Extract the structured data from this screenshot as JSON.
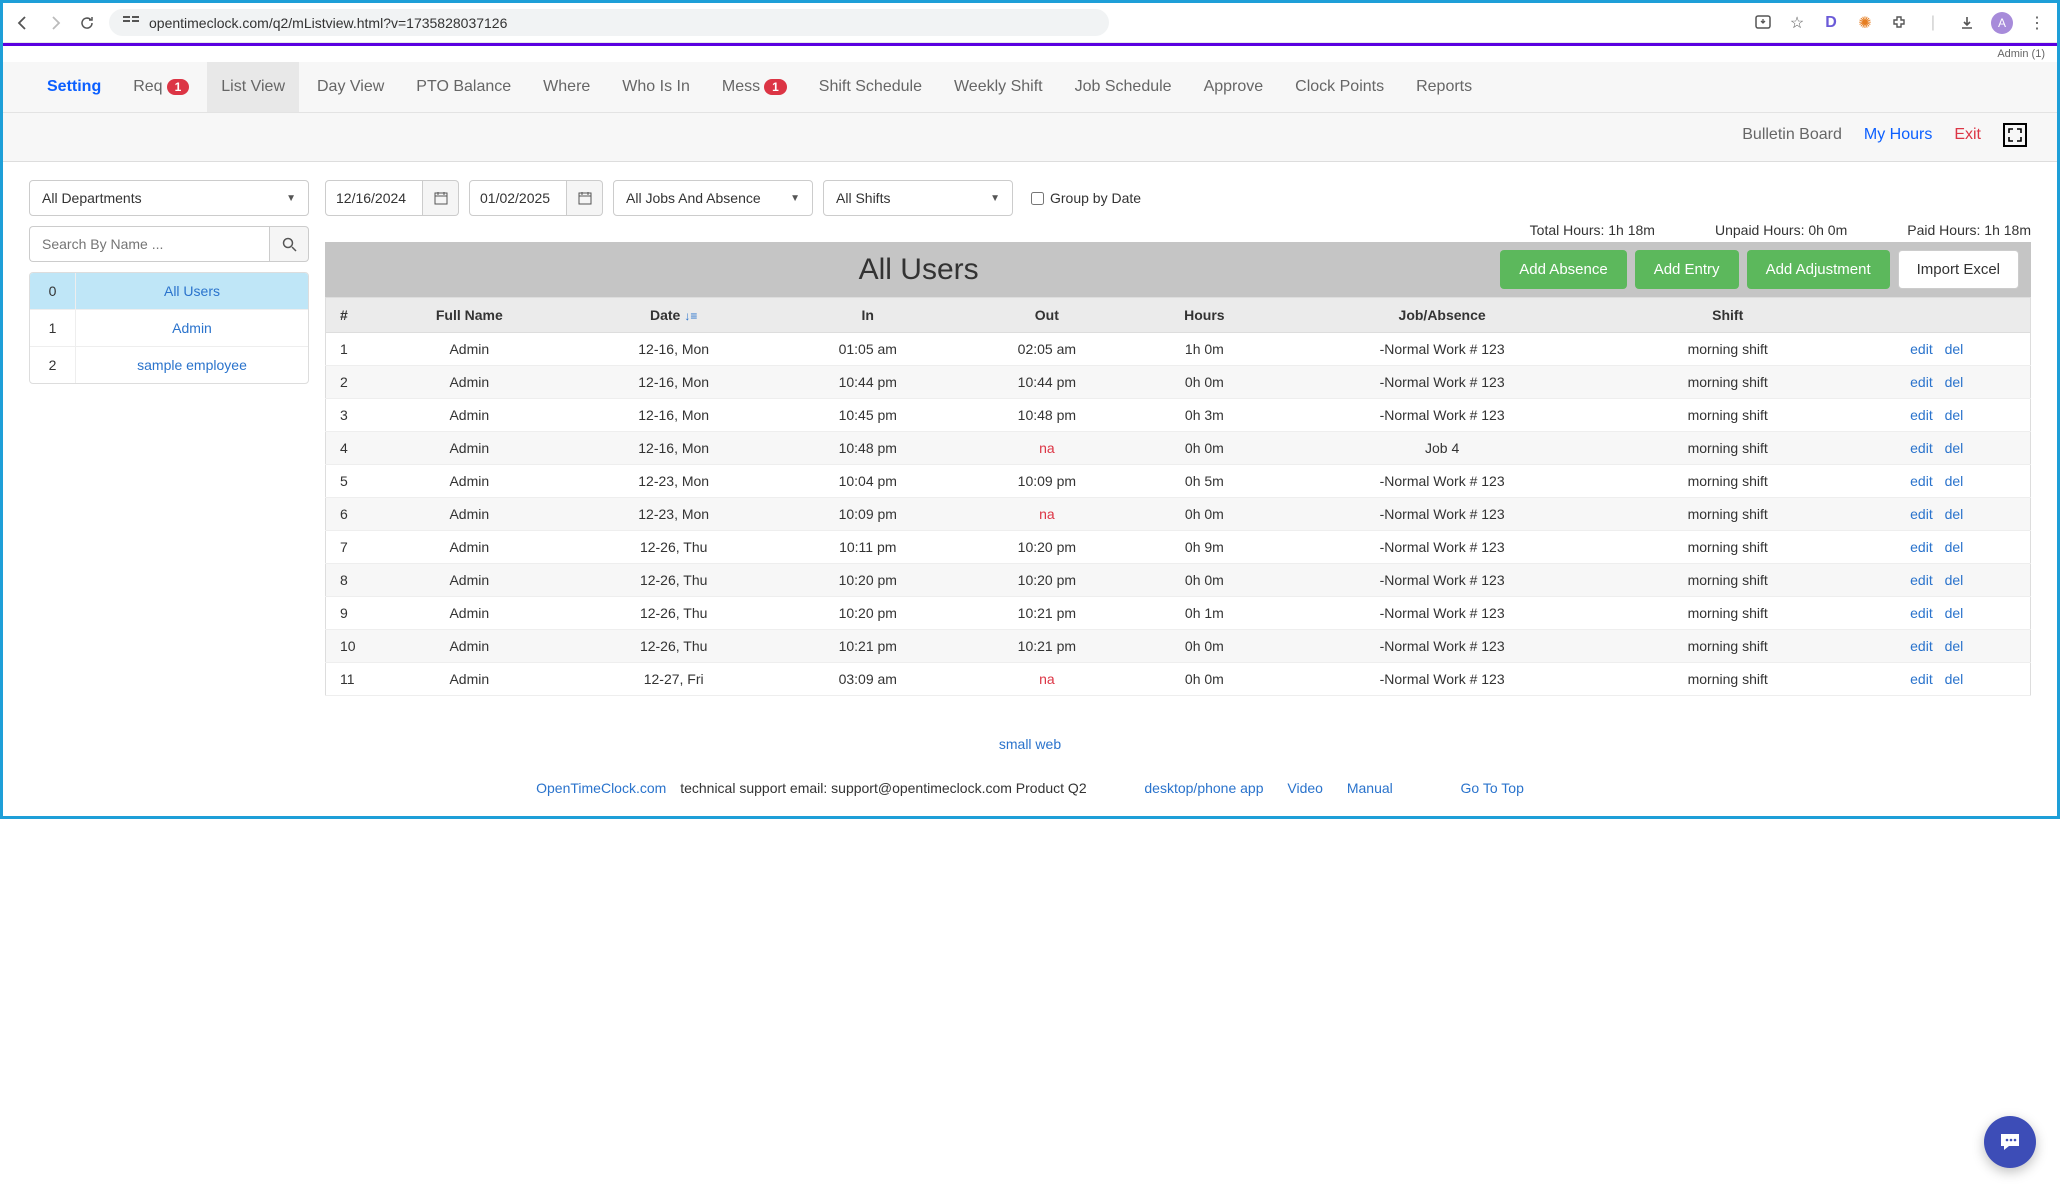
{
  "browser": {
    "url": "opentimeclock.com/q2/mListview.html?v=1735828037126",
    "profile_initial": "A"
  },
  "admin_label": "Admin (1)",
  "nav": {
    "items": [
      {
        "label": "Setting",
        "style": "primary"
      },
      {
        "label": "Req",
        "badge": "1"
      },
      {
        "label": "List View",
        "style": "active"
      },
      {
        "label": "Day View"
      },
      {
        "label": "PTO Balance"
      },
      {
        "label": "Where"
      },
      {
        "label": "Who Is In"
      },
      {
        "label": "Mess",
        "badge": "1"
      },
      {
        "label": "Shift Schedule"
      },
      {
        "label": "Weekly Shift"
      },
      {
        "label": "Job Schedule"
      },
      {
        "label": "Approve"
      },
      {
        "label": "Clock Points"
      },
      {
        "label": "Reports"
      }
    ],
    "sub": {
      "bulletin": "Bulletin Board",
      "myhours": "My Hours",
      "exit": "Exit"
    }
  },
  "sidebar": {
    "dept_select": "All Departments",
    "search_placeholder": "Search By Name ...",
    "users": [
      {
        "idx": "0",
        "name": "All Users",
        "selected": true
      },
      {
        "idx": "1",
        "name": "Admin"
      },
      {
        "idx": "2",
        "name": "sample employee"
      }
    ]
  },
  "filters": {
    "date_from": "12/16/2024",
    "date_to": "01/02/2025",
    "jobs_select": "All Jobs And Absence",
    "shifts_select": "All Shifts",
    "group_by_label": "Group by Date"
  },
  "summary": {
    "total": "Total Hours: 1h 18m",
    "unpaid": "Unpaid Hours: 0h 0m",
    "paid": "Paid Hours: 1h 18m"
  },
  "table": {
    "title": "All Users",
    "buttons": {
      "add_absence": "Add Absence",
      "add_entry": "Add Entry",
      "add_adjustment": "Add Adjustment",
      "import_excel": "Import Excel"
    },
    "columns": [
      "#",
      "Full Name",
      "Date",
      "In",
      "Out",
      "Hours",
      "Job/Absence",
      "Shift",
      ""
    ],
    "edit_label": "edit",
    "del_label": "del",
    "rows": [
      {
        "n": "1",
        "name": "Admin",
        "date": "12-16, Mon",
        "in": "01:05 am",
        "out": "02:05 am",
        "hours": "1h 0m",
        "job": "-Normal Work # 123",
        "shift": "morning shift"
      },
      {
        "n": "2",
        "name": "Admin",
        "date": "12-16, Mon",
        "in": "10:44 pm",
        "out": "10:44 pm",
        "hours": "0h 0m",
        "job": "-Normal Work # 123",
        "shift": "morning shift"
      },
      {
        "n": "3",
        "name": "Admin",
        "date": "12-16, Mon",
        "in": "10:45 pm",
        "out": "10:48 pm",
        "hours": "0h 3m",
        "job": "-Normal Work # 123",
        "shift": "morning shift"
      },
      {
        "n": "4",
        "name": "Admin",
        "date": "12-16, Mon",
        "in": "10:48 pm",
        "out": "na",
        "hours": "0h 0m",
        "job": "Job 4",
        "shift": "morning shift"
      },
      {
        "n": "5",
        "name": "Admin",
        "date": "12-23, Mon",
        "in": "10:04 pm",
        "out": "10:09 pm",
        "hours": "0h 5m",
        "job": "-Normal Work # 123",
        "shift": "morning shift"
      },
      {
        "n": "6",
        "name": "Admin",
        "date": "12-23, Mon",
        "in": "10:09 pm",
        "out": "na",
        "hours": "0h 0m",
        "job": "-Normal Work # 123",
        "shift": "morning shift"
      },
      {
        "n": "7",
        "name": "Admin",
        "date": "12-26, Thu",
        "in": "10:11 pm",
        "out": "10:20 pm",
        "hours": "0h 9m",
        "job": "-Normal Work # 123",
        "shift": "morning shift"
      },
      {
        "n": "8",
        "name": "Admin",
        "date": "12-26, Thu",
        "in": "10:20 pm",
        "out": "10:20 pm",
        "hours": "0h 0m",
        "job": "-Normal Work # 123",
        "shift": "morning shift"
      },
      {
        "n": "9",
        "name": "Admin",
        "date": "12-26, Thu",
        "in": "10:20 pm",
        "out": "10:21 pm",
        "hours": "0h 1m",
        "job": "-Normal Work # 123",
        "shift": "morning shift"
      },
      {
        "n": "10",
        "name": "Admin",
        "date": "12-26, Thu",
        "in": "10:21 pm",
        "out": "10:21 pm",
        "hours": "0h 0m",
        "job": "-Normal Work # 123",
        "shift": "morning shift"
      },
      {
        "n": "11",
        "name": "Admin",
        "date": "12-27, Fri",
        "in": "03:09 am",
        "out": "na",
        "hours": "0h 0m",
        "job": "-Normal Work # 123",
        "shift": "morning shift"
      }
    ]
  },
  "footer": {
    "small_web": "small web",
    "brand": "OpenTimeClock.com",
    "support_text": " technical support email: support@opentimeclock.com Product Q2",
    "links": {
      "desktop": "desktop/phone app",
      "video": "Video",
      "manual": "Manual",
      "top": "Go To Top"
    }
  }
}
